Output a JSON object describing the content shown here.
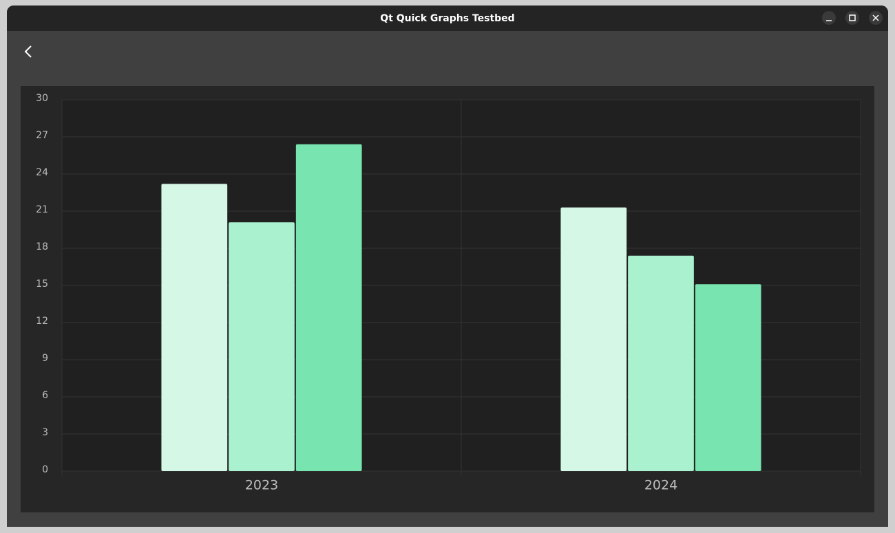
{
  "window": {
    "title": "Qt Quick Graphs Testbed"
  },
  "chart_data": {
    "type": "bar",
    "categories": [
      "2023",
      "2024"
    ],
    "series": [
      {
        "color": "#d5f8e6",
        "values": [
          23.2,
          21.3
        ]
      },
      {
        "color": "#aaf2cf",
        "values": [
          20.1,
          17.4
        ]
      },
      {
        "color": "#78e4b0",
        "values": [
          26.4,
          15.1
        ]
      }
    ],
    "ylim": [
      0,
      30
    ],
    "yticks": [
      0,
      3,
      6,
      9,
      12,
      15,
      18,
      21,
      24,
      27,
      30
    ],
    "grid": true
  }
}
